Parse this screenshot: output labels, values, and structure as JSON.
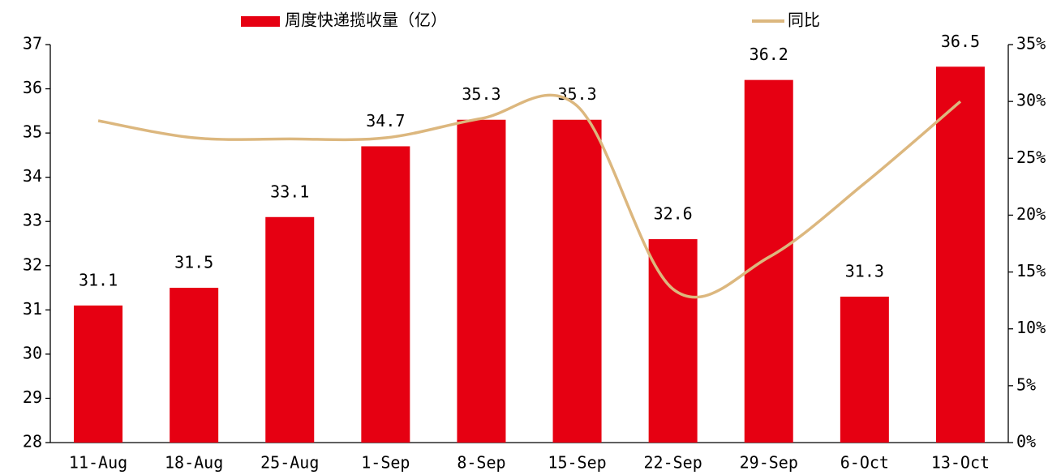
{
  "chart_data": {
    "type": "bar_line",
    "categories": [
      "11-Aug",
      "18-Aug",
      "25-Aug",
      "1-Sep",
      "8-Sep",
      "15-Sep",
      "22-Sep",
      "29-Sep",
      "6-Oct",
      "13-Oct"
    ],
    "series": [
      {
        "name": "周度快递揽收量（亿）",
        "type": "bar",
        "color": "#e60012",
        "values": [
          31.1,
          31.5,
          33.1,
          34.7,
          35.3,
          35.3,
          32.6,
          36.2,
          31.3,
          36.5
        ]
      },
      {
        "name": "同比",
        "type": "line",
        "axis": "y2",
        "color": "#dcb77e",
        "values": [
          28.3,
          26.8,
          26.7,
          26.8,
          28.5,
          29.6,
          13.5,
          16.3,
          22.8,
          30.0
        ]
      }
    ],
    "ylim": [
      28,
      37
    ],
    "yticks": [
      28,
      29,
      30,
      31,
      32,
      33,
      34,
      35,
      36,
      37
    ],
    "y2lim": [
      0,
      35
    ],
    "y2ticks": [
      {
        "value": 0,
        "label": "0%"
      },
      {
        "value": 5,
        "label": "5%"
      },
      {
        "value": 10,
        "label": "10%"
      },
      {
        "value": 15,
        "label": "15%"
      },
      {
        "value": 20,
        "label": "20%"
      },
      {
        "value": 25,
        "label": "25%"
      },
      {
        "value": 30,
        "label": "30%"
      },
      {
        "value": 35,
        "label": "35%"
      }
    ],
    "legend": "top",
    "grid": false
  }
}
